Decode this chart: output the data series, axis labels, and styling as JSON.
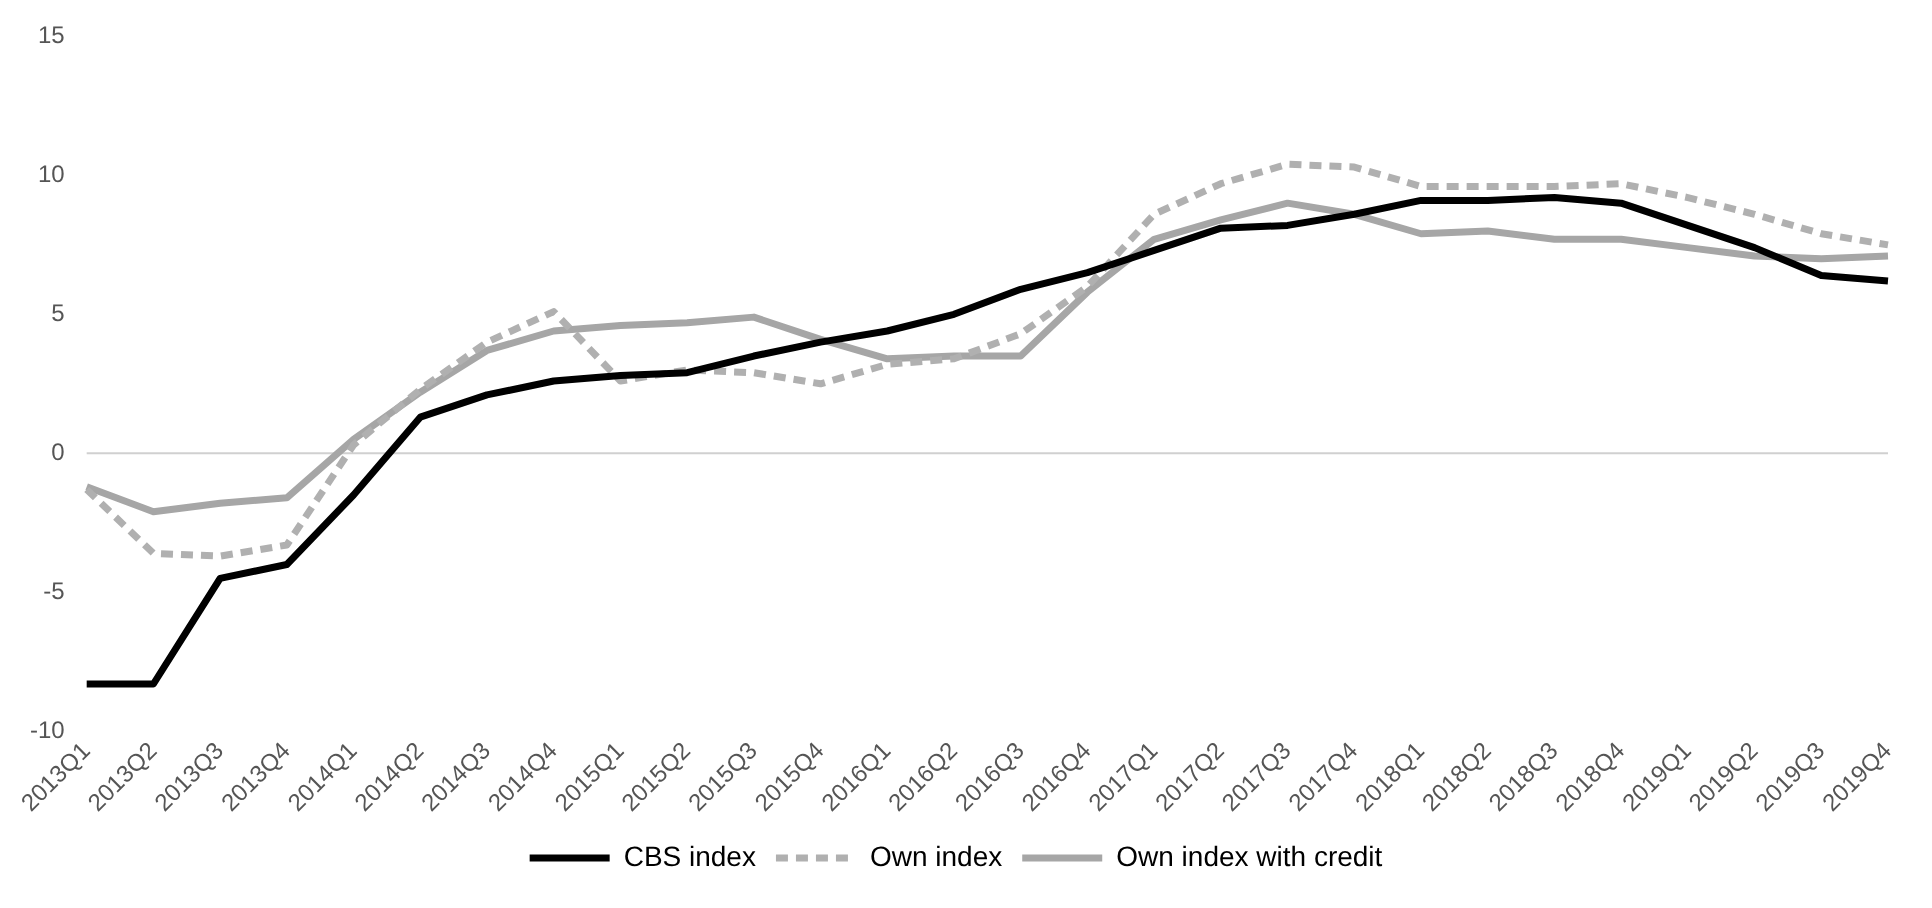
{
  "chart_data": {
    "type": "line",
    "categories": [
      "2013Q1",
      "2013Q2",
      "2013Q3",
      "2013Q4",
      "2014Q1",
      "2014Q2",
      "2014Q3",
      "2014Q4",
      "2015Q1",
      "2015Q2",
      "2015Q3",
      "2015Q4",
      "2016Q1",
      "2016Q2",
      "2016Q3",
      "2016Q4",
      "2017Q1",
      "2017Q2",
      "2017Q3",
      "2017Q4",
      "2018Q1",
      "2018Q2",
      "2018Q3",
      "2018Q4",
      "2019Q1",
      "2019Q2",
      "2019Q3",
      "2019Q4"
    ],
    "series": [
      {
        "name": "CBS index",
        "color": "#000000",
        "line_style": "solid",
        "values": [
          -8.3,
          -8.3,
          -4.5,
          -4.0,
          -1.5,
          1.3,
          2.1,
          2.6,
          2.8,
          2.9,
          3.5,
          4.0,
          4.4,
          5.0,
          5.9,
          6.5,
          7.3,
          8.1,
          8.2,
          8.6,
          9.1,
          9.1,
          9.2,
          9.0,
          8.2,
          7.4,
          6.4,
          6.2
        ]
      },
      {
        "name": "Own index",
        "color": "#b0b0b0",
        "line_style": "dashed",
        "values": [
          -1.3,
          -3.6,
          -3.7,
          -3.3,
          0.3,
          2.3,
          4.0,
          5.1,
          2.6,
          3.0,
          2.9,
          2.5,
          3.2,
          3.4,
          4.3,
          6.0,
          8.6,
          9.7,
          10.4,
          10.3,
          9.6,
          9.6,
          9.6,
          9.7,
          9.2,
          8.6,
          7.9,
          7.5
        ]
      },
      {
        "name": "Own index with credit",
        "color": "#a6a6a6",
        "line_style": "solid",
        "values": [
          -1.2,
          -2.1,
          -1.8,
          -1.6,
          0.5,
          2.2,
          3.7,
          4.4,
          4.6,
          4.7,
          4.9,
          4.1,
          3.4,
          3.5,
          3.5,
          5.8,
          7.7,
          8.4,
          9.0,
          8.6,
          7.9,
          8.0,
          7.7,
          7.7,
          7.4,
          7.1,
          7.0,
          7.1
        ]
      }
    ],
    "ref_lines": [
      {
        "axis": "y",
        "value": 0,
        "color": "#d0d0d0"
      }
    ],
    "ylim": [
      -10,
      15
    ],
    "yticks": [
      -10,
      -5,
      0,
      5,
      10,
      15
    ],
    "grid": false,
    "legend": "bottom",
    "marker": "none"
  }
}
